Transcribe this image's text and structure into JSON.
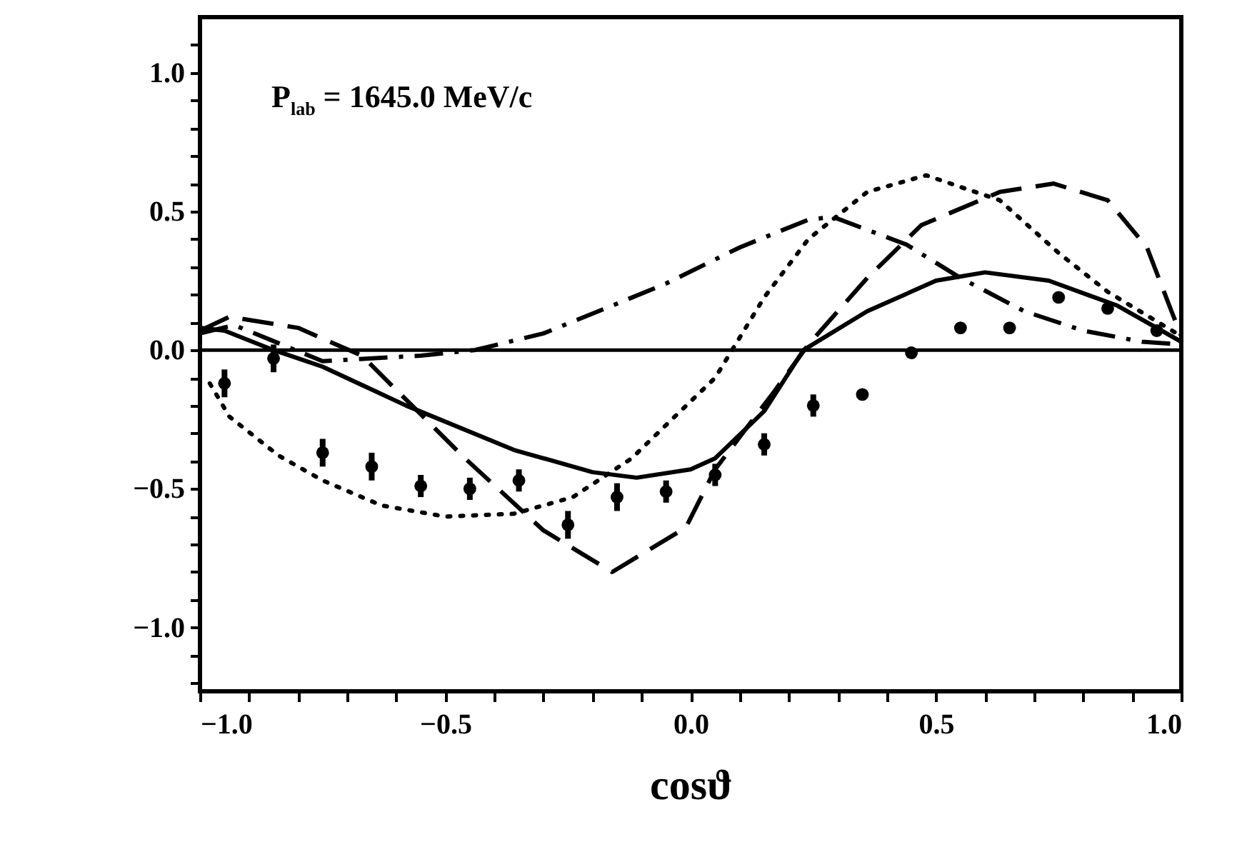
{
  "chart_data": {
    "type": "line",
    "xlabel": "cosϑ",
    "annotations": [
      "P$_{lab}$ = 1645.0 MeV/c"
    ],
    "xlim": [
      -1,
      1
    ],
    "ylim": [
      -1.23,
      1.2
    ],
    "xticks": [
      {
        "value": -1,
        "label": "−1.0"
      },
      {
        "value": -0.9,
        "label": null
      },
      {
        "value": -0.8,
        "label": null
      },
      {
        "value": -0.7,
        "label": null
      },
      {
        "value": -0.6,
        "label": null
      },
      {
        "value": -0.5,
        "label": "−0.5"
      },
      {
        "value": -0.4,
        "label": null
      },
      {
        "value": -0.3,
        "label": null
      },
      {
        "value": -0.2,
        "label": null
      },
      {
        "value": -0.1,
        "label": null
      },
      {
        "value": 0,
        "label": "0.0"
      },
      {
        "value": 0.1,
        "label": null
      },
      {
        "value": 0.2,
        "label": null
      },
      {
        "value": 0.3,
        "label": null
      },
      {
        "value": 0.4,
        "label": null
      },
      {
        "value": 0.5,
        "label": "0.5"
      },
      {
        "value": 0.6,
        "label": null
      },
      {
        "value": 0.7,
        "label": null
      },
      {
        "value": 0.8,
        "label": null
      },
      {
        "value": 0.9,
        "label": null
      },
      {
        "value": 1,
        "label": "1.0"
      }
    ],
    "yticks": [
      {
        "value": -1.2,
        "label": null
      },
      {
        "value": -1.1,
        "label": null
      },
      {
        "value": -1,
        "label": "−1.0"
      },
      {
        "value": -0.9,
        "label": null
      },
      {
        "value": -0.8,
        "label": null
      },
      {
        "value": -0.7,
        "label": null
      },
      {
        "value": -0.6,
        "label": null
      },
      {
        "value": -0.5,
        "label": "−0.5"
      },
      {
        "value": -0.4,
        "label": null
      },
      {
        "value": -0.3,
        "label": null
      },
      {
        "value": -0.2,
        "label": null
      },
      {
        "value": -0.1,
        "label": null
      },
      {
        "value": 0,
        "label": "0.0"
      },
      {
        "value": 0.1,
        "label": null
      },
      {
        "value": 0.2,
        "label": null
      },
      {
        "value": 0.3,
        "label": null
      },
      {
        "value": 0.4,
        "label": null
      },
      {
        "value": 0.5,
        "label": "0.5"
      },
      {
        "value": 0.6,
        "label": null
      },
      {
        "value": 0.7,
        "label": null
      },
      {
        "value": 0.8,
        "label": null
      },
      {
        "value": 0.9,
        "label": null
      },
      {
        "value": 1,
        "label": "1.0"
      },
      {
        "value": 1.1,
        "label": null
      }
    ],
    "ref_lines": [
      {
        "axis": "y",
        "value": 0,
        "color": "#000000",
        "line_style": "solid"
      }
    ],
    "series": [
      {
        "color": "#000000",
        "line_style": "solid",
        "x": [
          -1,
          -0.95,
          -0.85,
          -0.75,
          -0.58,
          -0.36,
          -0.2,
          -0.11,
          0,
          0.05,
          0.15,
          0.23,
          0.36,
          0.5,
          0.6,
          0.73,
          0.87,
          1
        ],
        "values": [
          0.08,
          0.07,
          0,
          -0.06,
          -0.2,
          -0.36,
          -0.44,
          -0.46,
          -0.43,
          -0.39,
          -0.22,
          0,
          0.14,
          0.25,
          0.28,
          0.25,
          0.16,
          0.03
        ]
      },
      {
        "color": "#000000",
        "line_style": "dashed",
        "x": [
          -1,
          -0.94,
          -0.8,
          -0.67,
          -0.46,
          -0.3,
          -0.16,
          -0.01,
          0.05,
          0.17,
          0.24,
          0.36,
          0.47,
          0.63,
          0.74,
          0.85,
          0.93,
          0.98,
          1
        ],
        "values": [
          0.07,
          0.12,
          0.08,
          -0.02,
          -0.39,
          -0.65,
          -0.8,
          -0.64,
          -0.43,
          -0.15,
          0.02,
          0.26,
          0.45,
          0.57,
          0.6,
          0.54,
          0.37,
          0.14,
          0.05
        ]
      },
      {
        "color": "#000000",
        "line_style": "dotted",
        "x": [
          -0.98,
          -0.94,
          -0.84,
          -0.75,
          -0.63,
          -0.5,
          -0.36,
          -0.24,
          -0.12,
          -0.05,
          0.05,
          0.15,
          0.24,
          0.36,
          0.48,
          0.63,
          0.75,
          0.85,
          1
        ],
        "values": [
          -0.12,
          -0.24,
          -0.38,
          -0.47,
          -0.56,
          -0.6,
          -0.59,
          -0.53,
          -0.39,
          -0.27,
          -0.1,
          0.19,
          0.4,
          0.57,
          0.63,
          0.54,
          0.35,
          0.21,
          0.05
        ]
      },
      {
        "color": "#000000",
        "line_style": "dashdot",
        "x": [
          -1,
          -0.93,
          -0.75,
          -0.55,
          -0.44,
          -0.3,
          -0.16,
          -0.05,
          0.1,
          0.24,
          0.29,
          0.44,
          0.55,
          0.68,
          0.8,
          0.92,
          1
        ],
        "values": [
          0.06,
          0.09,
          -0.04,
          -0.02,
          0,
          0.06,
          0.16,
          0.24,
          0.37,
          0.47,
          0.48,
          0.38,
          0.26,
          0.14,
          0.07,
          0.03,
          0.02
        ]
      },
      {
        "type": "scatter",
        "color": "#000000",
        "marker": "circle",
        "x": [
          -0.95,
          -0.85,
          -0.75,
          -0.65,
          -0.55,
          -0.45,
          -0.35,
          -0.25,
          -0.15,
          -0.05,
          0.05,
          0.15,
          0.25,
          0.35,
          0.45,
          0.55,
          0.65,
          0.75,
          0.85,
          0.95
        ],
        "values": [
          -0.12,
          -0.03,
          -0.37,
          -0.42,
          -0.49,
          -0.5,
          -0.47,
          -0.63,
          -0.53,
          -0.51,
          -0.45,
          -0.34,
          -0.2,
          -0.16,
          -0.01,
          0.08,
          0.08,
          0.19,
          0.15,
          0.07
        ],
        "errors": [
          0.05,
          0.05,
          0.05,
          0.05,
          0.04,
          0.04,
          0.04,
          0.05,
          0.05,
          0.04,
          0.04,
          0.04,
          0.04,
          null,
          null,
          null,
          null,
          null,
          null,
          null
        ]
      }
    ]
  }
}
